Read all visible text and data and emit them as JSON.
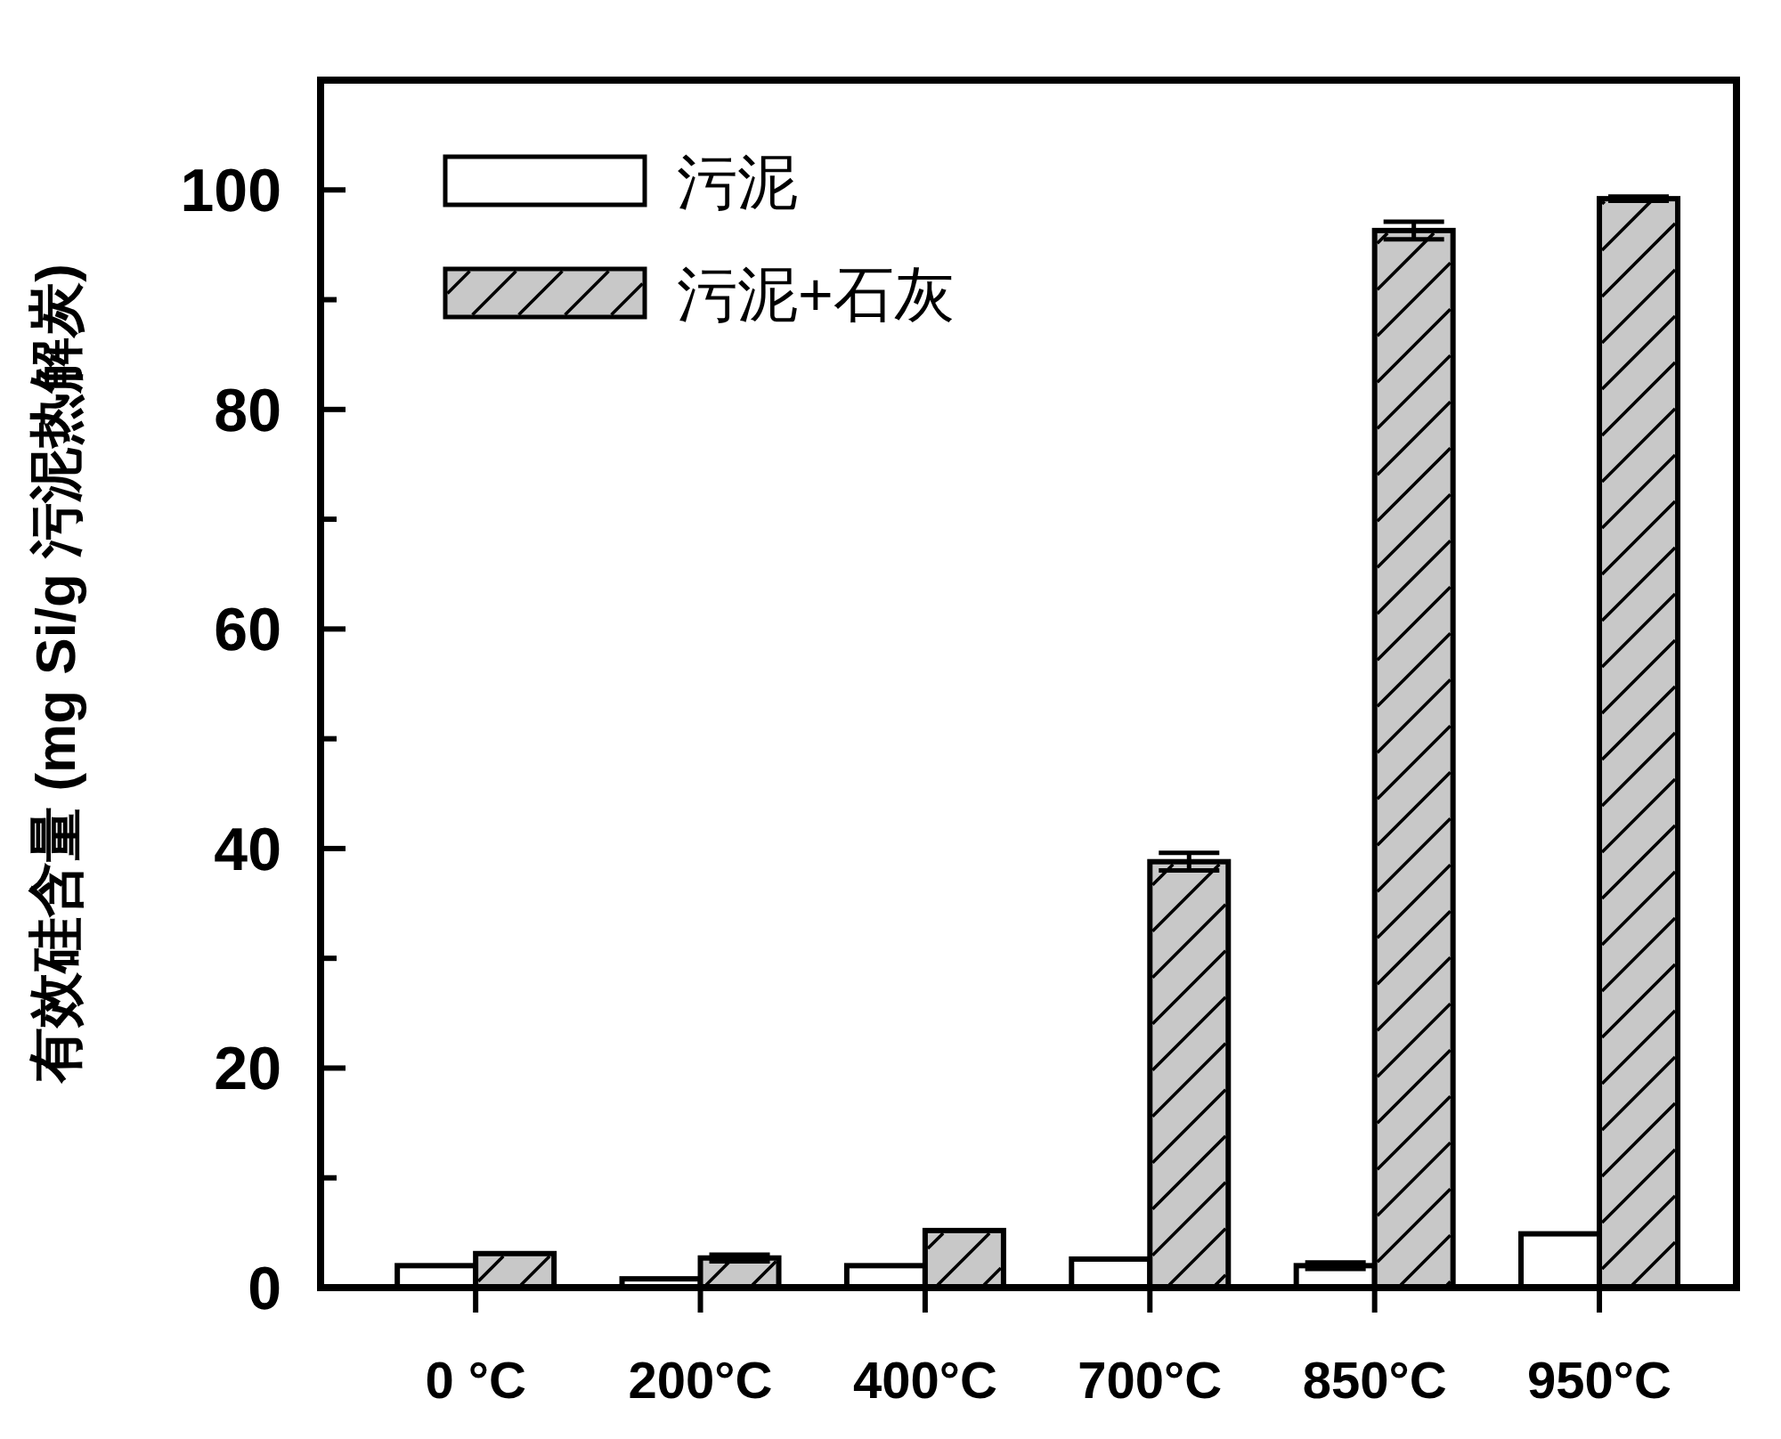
{
  "chart_data": {
    "type": "bar",
    "ylabel": "有效硅含量 (mg Si/g 污泥热解炭)",
    "categories": [
      "0 °C",
      "200°C",
      "400°C",
      "700°C",
      "850°C",
      "950°C"
    ],
    "series": [
      {
        "name": "污泥",
        "color": "#ffffff",
        "values": [
          2.0,
          0.8,
          2.0,
          2.6,
          2.0,
          4.9
        ],
        "errors": [
          null,
          null,
          null,
          null,
          0.3,
          null
        ]
      },
      {
        "name": "污泥+石灰",
        "color": "#c8c8c8",
        "values": [
          3.1,
          2.7,
          5.2,
          38.8,
          96.3,
          99.2
        ],
        "errors": [
          null,
          0.3,
          null,
          0.8,
          0.8,
          0.2
        ]
      }
    ],
    "ylim": [
      0,
      110
    ],
    "yticks": [
      0,
      {
        "value": 10,
        "label": null
      },
      20,
      {
        "value": 30,
        "label": null
      },
      40,
      {
        "value": 50,
        "label": null
      },
      60,
      {
        "value": 70,
        "label": null
      },
      80,
      {
        "value": 90,
        "label": null
      },
      100
    ],
    "legend": "top left",
    "grid": false
  }
}
